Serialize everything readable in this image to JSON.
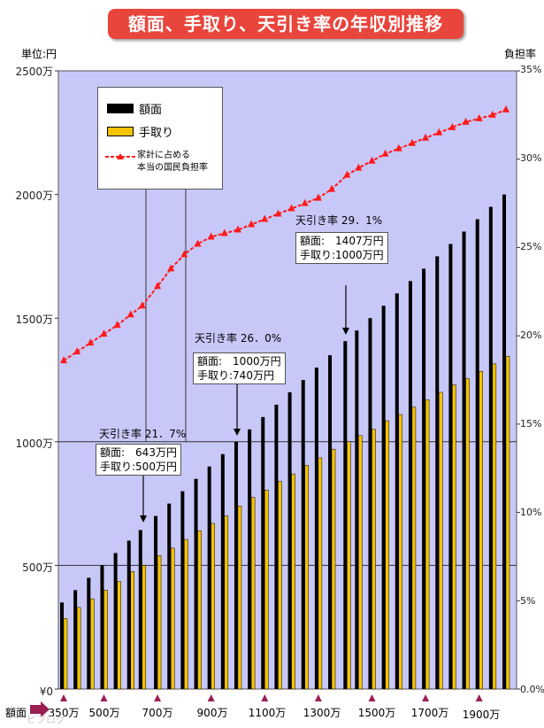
{
  "title": "額面、手取り、天引き率の年収別推移",
  "left_unit": "単位:円",
  "right_unit": "負担率",
  "x_axis_label": "額面",
  "watermark": "ビブログ",
  "colors": {
    "plot_bg": "#c8c8f8",
    "gross_bar": "#000000",
    "net_bar": "#f5c400",
    "burden_line": "#ff1a1a",
    "title_bg": "#e8453c",
    "tick_marker": "#9b1f52"
  },
  "legend": {
    "gross": "額面",
    "net": "手取り",
    "burden_line1": "家計に占める",
    "burden_line2": "本当の国民負担率"
  },
  "annotations": [
    {
      "rate": "天引き率 21．7%",
      "gross": "額面:　643万円",
      "net": "手取り:500万円"
    },
    {
      "rate": "天引き率 26．0%",
      "gross": "額面:　1000万円",
      "net": "手取り:740万円"
    },
    {
      "rate": "天引き率 29．1%",
      "gross": "額面:　1407万円",
      "net": "手取り:1000万円"
    }
  ],
  "chart_data": {
    "type": "bar",
    "title": "額面、手取り、天引き率の年収別推移",
    "y_ticks": [
      "¥0",
      "500万",
      "1000万",
      "1500万",
      "2000万",
      "2500万"
    ],
    "y2_ticks": [
      "0.0%",
      "5%",
      "10%",
      "15%",
      "20%",
      "25%",
      "30%",
      "35%"
    ],
    "x_tick_labels": [
      "350万",
      "500万",
      "700万",
      "900万",
      "1100万",
      "1300万",
      "1500万",
      "1700万",
      "1900万"
    ],
    "x_tick_values": [
      350,
      500,
      700,
      900,
      1100,
      1300,
      1500,
      1700,
      1900
    ],
    "ylim": [
      0,
      2500
    ],
    "y2lim": [
      0,
      35
    ],
    "categories": [
      350,
      400,
      450,
      500,
      550,
      600,
      643,
      700,
      750,
      800,
      850,
      900,
      950,
      1000,
      1050,
      1100,
      1150,
      1200,
      1250,
      1300,
      1350,
      1407,
      1450,
      1500,
      1550,
      1600,
      1650,
      1700,
      1750,
      1800,
      1850,
      1900,
      1950,
      2000
    ],
    "series": [
      {
        "name": "額面",
        "axis": "left",
        "values": [
          350,
          400,
          450,
          500,
          550,
          600,
          643,
          700,
          750,
          800,
          850,
          900,
          950,
          1000,
          1050,
          1100,
          1150,
          1200,
          1250,
          1300,
          1350,
          1407,
          1450,
          1500,
          1550,
          1600,
          1650,
          1700,
          1750,
          1800,
          1850,
          1900,
          1950,
          2000
        ]
      },
      {
        "name": "手取り",
        "axis": "left",
        "values": [
          285,
          330,
          365,
          400,
          435,
          475,
          500,
          540,
          570,
          605,
          640,
          670,
          700,
          740,
          775,
          805,
          840,
          870,
          905,
          935,
          970,
          1000,
          1025,
          1050,
          1085,
          1110,
          1140,
          1170,
          1200,
          1230,
          1255,
          1285,
          1315,
          1345
        ]
      },
      {
        "name": "家計に占める本当の国民負担率",
        "axis": "right",
        "type": "line",
        "values": [
          18.6,
          19.1,
          19.6,
          20.1,
          20.6,
          21.2,
          21.7,
          22.8,
          23.8,
          24.6,
          25.2,
          25.6,
          25.8,
          26.0,
          26.3,
          26.6,
          26.9,
          27.2,
          27.5,
          27.8,
          28.3,
          29.1,
          29.5,
          29.9,
          30.3,
          30.6,
          30.9,
          31.2,
          31.5,
          31.8,
          32.1,
          32.3,
          32.5,
          32.8
        ]
      }
    ]
  }
}
